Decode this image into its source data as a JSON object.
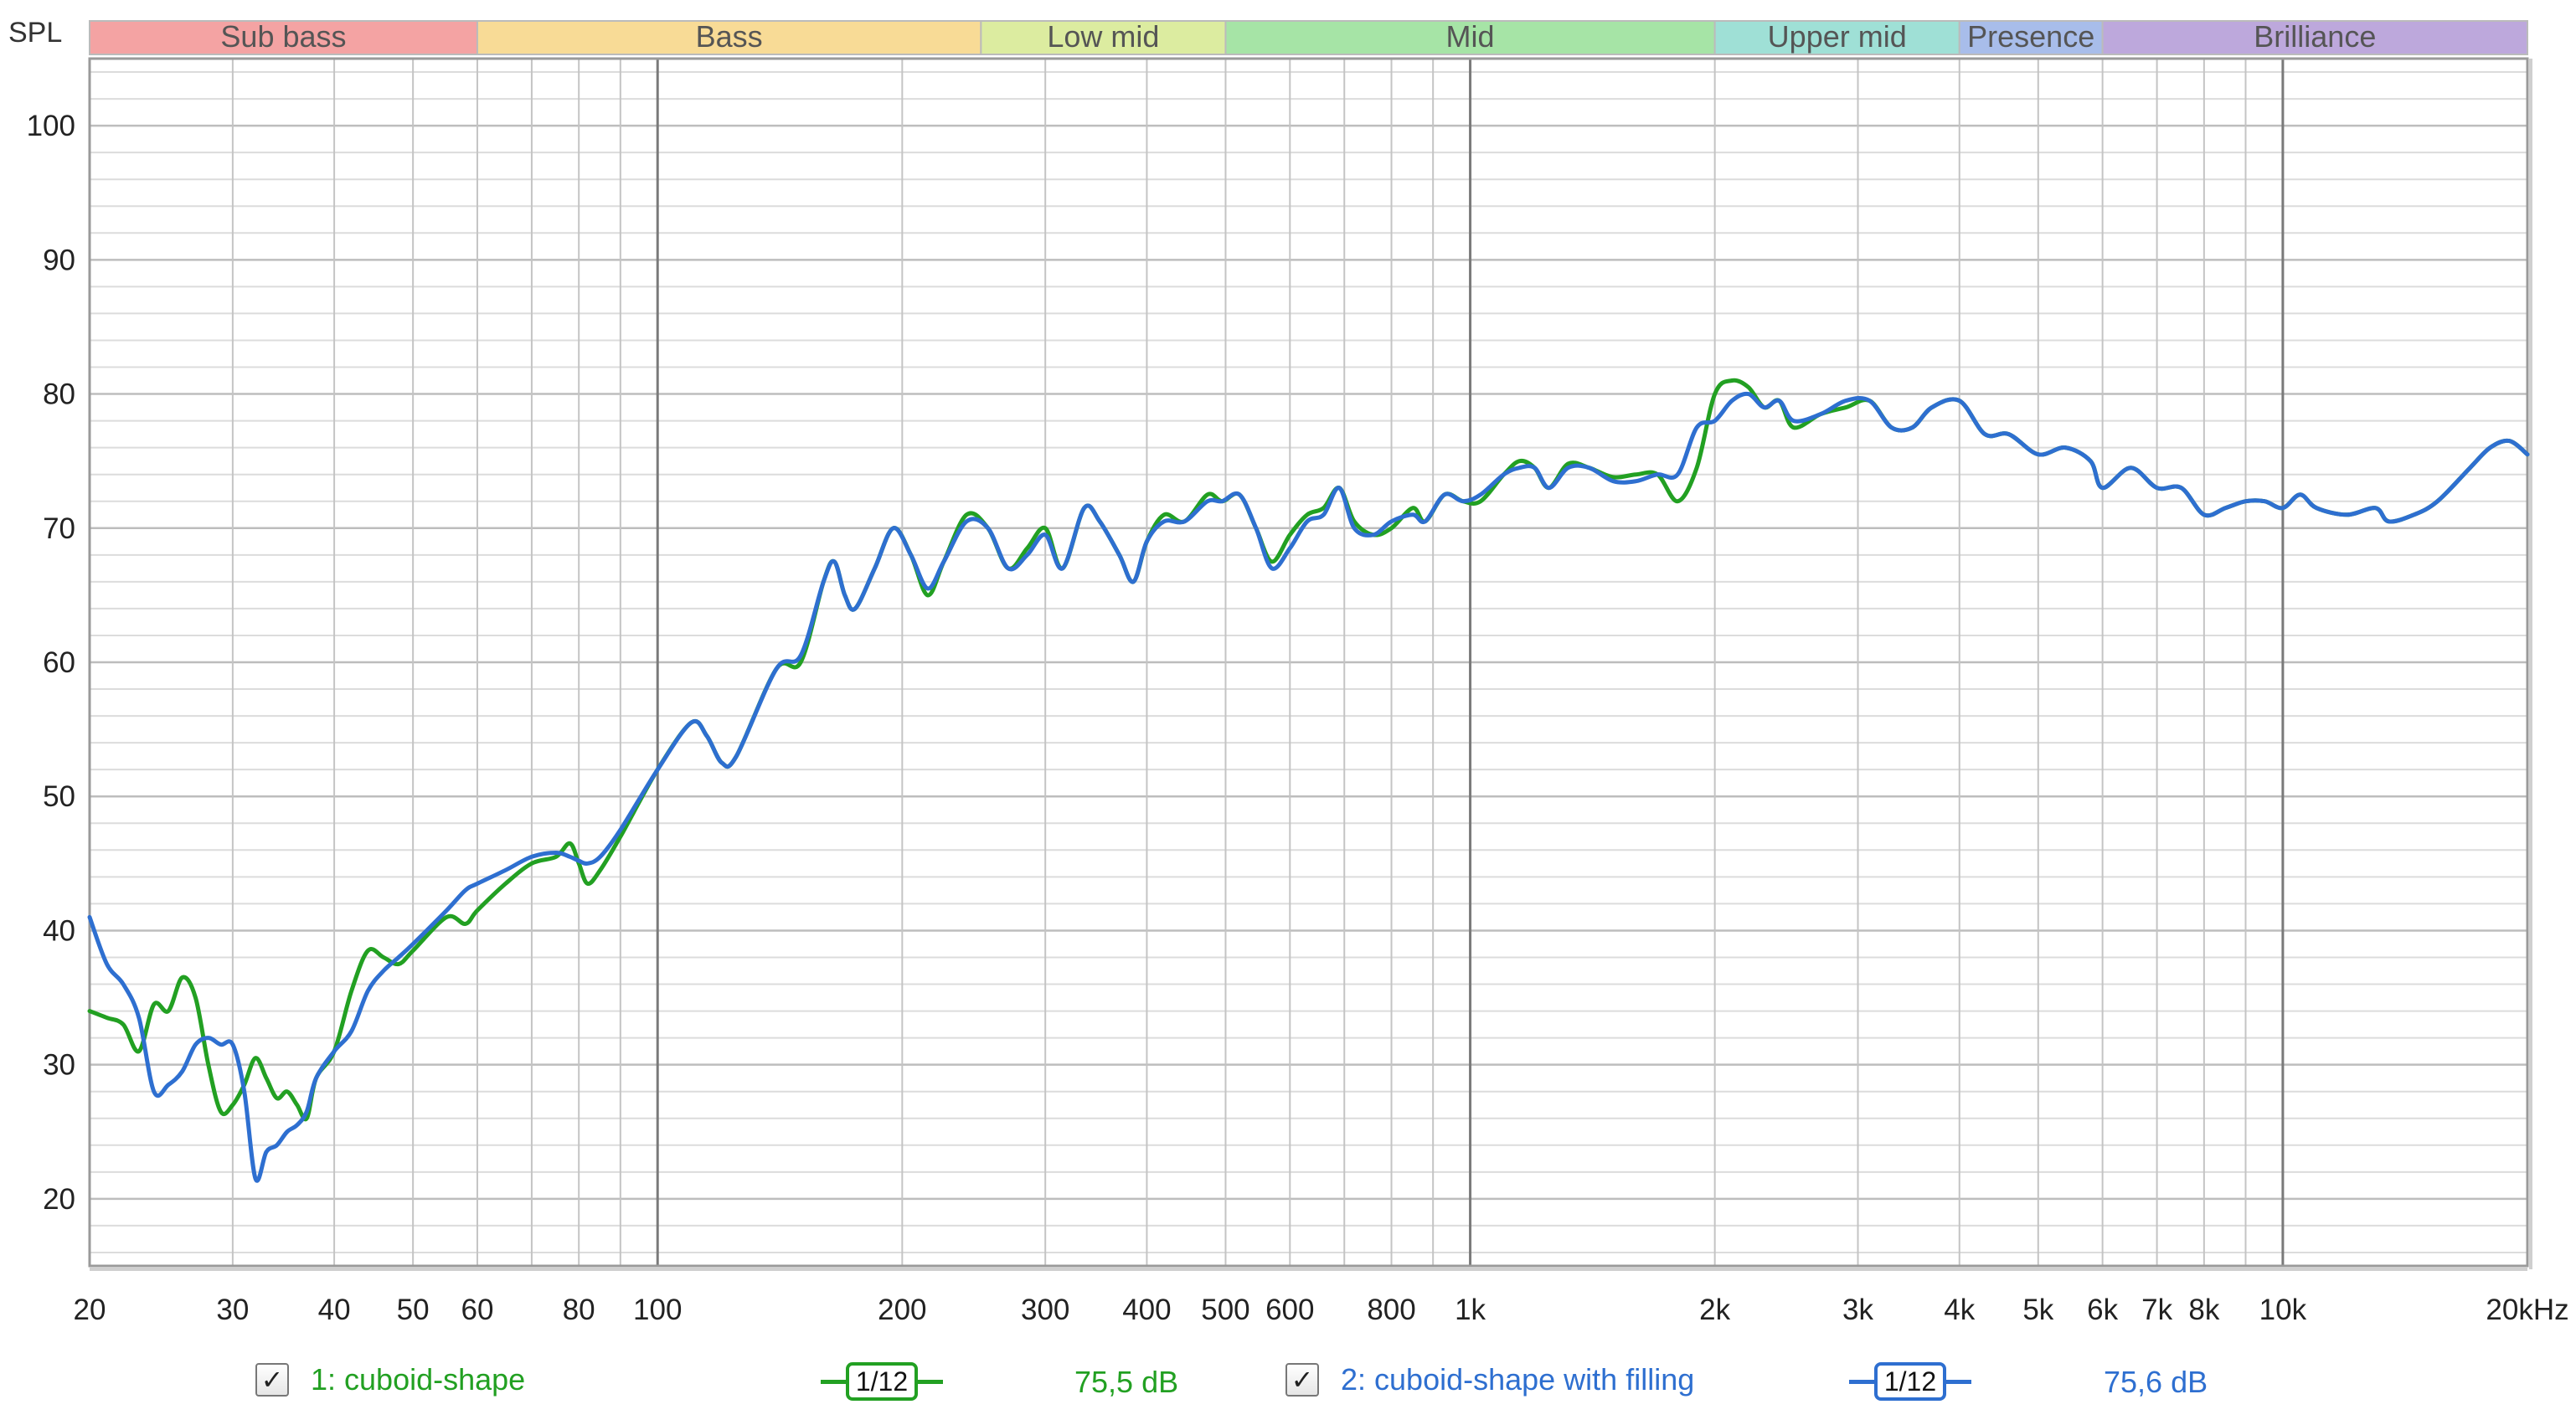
{
  "app": {
    "y_axis_title": "SPL",
    "bands": [
      {
        "label": "Sub bass",
        "from": 20,
        "to": 60,
        "color": "#f4a3a3"
      },
      {
        "label": "Bass",
        "from": 60,
        "to": 250,
        "color": "#f8db96"
      },
      {
        "label": "Low mid",
        "from": 250,
        "to": 500,
        "color": "#dcecA0"
      },
      {
        "label": "Mid",
        "from": 500,
        "to": 2000,
        "color": "#a6e4a6"
      },
      {
        "label": "Upper mid",
        "from": 2000,
        "to": 4000,
        "color": "#9fe0d6"
      },
      {
        "label": "Presence",
        "from": 4000,
        "to": 6000,
        "color": "#a8bdea"
      },
      {
        "label": "Brilliance",
        "from": 6000,
        "to": 20000,
        "color": "#bda8dc"
      }
    ],
    "legend": [
      {
        "checked": true,
        "checkmark": "✓",
        "label": "1: cuboid-shape",
        "smoothing": "1/12",
        "value": "75,5 dB",
        "color": "#22a022"
      },
      {
        "checked": true,
        "checkmark": "✓",
        "label": "2: cuboid-shape with filling",
        "smoothing": "1/12",
        "value": "75,6 dB",
        "color": "#2e6fd0"
      }
    ]
  },
  "chart_data": {
    "type": "line",
    "x_scale": "log",
    "xlim": [
      20,
      20000
    ],
    "ylim": [
      15,
      105
    ],
    "ylabel": "SPL",
    "grid": true,
    "y_ticks": [
      20,
      30,
      40,
      50,
      60,
      70,
      80,
      90,
      100
    ],
    "x_ticks": [
      {
        "value": 20,
        "label": "20"
      },
      {
        "value": 30,
        "label": "30"
      },
      {
        "value": 40,
        "label": "40"
      },
      {
        "value": 50,
        "label": "50"
      },
      {
        "value": 60,
        "label": "60"
      },
      {
        "value": 80,
        "label": "80"
      },
      {
        "value": 100,
        "label": "100"
      },
      {
        "value": 200,
        "label": "200"
      },
      {
        "value": 300,
        "label": "300"
      },
      {
        "value": 400,
        "label": "400"
      },
      {
        "value": 500,
        "label": "500"
      },
      {
        "value": 600,
        "label": "600"
      },
      {
        "value": 800,
        "label": "800"
      },
      {
        "value": 1000,
        "label": "1k"
      },
      {
        "value": 2000,
        "label": "2k"
      },
      {
        "value": 3000,
        "label": "3k"
      },
      {
        "value": 4000,
        "label": "4k"
      },
      {
        "value": 5000,
        "label": "5k"
      },
      {
        "value": 6000,
        "label": "6k"
      },
      {
        "value": 7000,
        "label": "7k"
      },
      {
        "value": 8000,
        "label": "8k"
      },
      {
        "value": 10000,
        "label": "10k"
      },
      {
        "value": 20000,
        "label": "20kHz"
      }
    ],
    "series": [
      {
        "name": "1: cuboid-shape",
        "color": "#22a022",
        "points": [
          [
            20,
            34
          ],
          [
            21,
            33.5
          ],
          [
            22,
            33
          ],
          [
            23,
            31
          ],
          [
            24,
            34.5
          ],
          [
            25,
            34
          ],
          [
            26,
            36.5
          ],
          [
            27,
            35
          ],
          [
            28,
            30
          ],
          [
            29,
            26.5
          ],
          [
            30,
            27
          ],
          [
            31,
            28.5
          ],
          [
            32,
            30.5
          ],
          [
            33,
            29
          ],
          [
            34,
            27.5
          ],
          [
            35,
            28
          ],
          [
            36,
            27
          ],
          [
            37,
            26
          ],
          [
            38,
            29
          ],
          [
            40,
            31
          ],
          [
            42,
            35.5
          ],
          [
            44,
            38.5
          ],
          [
            46,
            38
          ],
          [
            48,
            37.5
          ],
          [
            50,
            38.5
          ],
          [
            55,
            41
          ],
          [
            58,
            40.5
          ],
          [
            60,
            41.5
          ],
          [
            65,
            43.5
          ],
          [
            70,
            45
          ],
          [
            75,
            45.5
          ],
          [
            78,
            46.5
          ],
          [
            80,
            45
          ],
          [
            82,
            43.5
          ],
          [
            85,
            44.5
          ],
          [
            90,
            47
          ],
          [
            100,
            52
          ],
          [
            110,
            55.5
          ],
          [
            115,
            54.5
          ],
          [
            120,
            52.5
          ],
          [
            125,
            53
          ],
          [
            140,
            59.5
          ],
          [
            150,
            60
          ],
          [
            160,
            66
          ],
          [
            165,
            67.5
          ],
          [
            170,
            65
          ],
          [
            175,
            64
          ],
          [
            185,
            67
          ],
          [
            195,
            70
          ],
          [
            205,
            68
          ],
          [
            215,
            65
          ],
          [
            225,
            67.5
          ],
          [
            240,
            71
          ],
          [
            255,
            70
          ],
          [
            270,
            67
          ],
          [
            285,
            68.5
          ],
          [
            300,
            70
          ],
          [
            315,
            67
          ],
          [
            335,
            71.5
          ],
          [
            350,
            70.5
          ],
          [
            370,
            68
          ],
          [
            385,
            66
          ],
          [
            400,
            69
          ],
          [
            420,
            71
          ],
          [
            445,
            70.5
          ],
          [
            475,
            72.5
          ],
          [
            495,
            72
          ],
          [
            520,
            72.5
          ],
          [
            545,
            70
          ],
          [
            570,
            67.5
          ],
          [
            600,
            69.5
          ],
          [
            630,
            71
          ],
          [
            660,
            71.5
          ],
          [
            690,
            73
          ],
          [
            720,
            70.5
          ],
          [
            760,
            69.5
          ],
          [
            800,
            70
          ],
          [
            850,
            71.5
          ],
          [
            880,
            70.5
          ],
          [
            930,
            72.5
          ],
          [
            980,
            72
          ],
          [
            1030,
            72
          ],
          [
            1100,
            74
          ],
          [
            1150,
            75
          ],
          [
            1200,
            74.5
          ],
          [
            1250,
            73
          ],
          [
            1320,
            74.8
          ],
          [
            1400,
            74.5
          ],
          [
            1500,
            73.8
          ],
          [
            1600,
            74
          ],
          [
            1700,
            74
          ],
          [
            1800,
            72
          ],
          [
            1900,
            74.5
          ],
          [
            2000,
            80
          ],
          [
            2100,
            81
          ],
          [
            2200,
            80.5
          ],
          [
            2300,
            79
          ],
          [
            2400,
            79.5
          ],
          [
            2500,
            77.5
          ],
          [
            2700,
            78.5
          ],
          [
            2900,
            79
          ],
          [
            3100,
            79.5
          ],
          [
            3300,
            77.5
          ],
          [
            3500,
            77.5
          ],
          [
            3700,
            79
          ],
          [
            4000,
            79.5
          ],
          [
            4300,
            77
          ],
          [
            4600,
            77
          ],
          [
            5000,
            75.5
          ],
          [
            5400,
            76
          ],
          [
            5800,
            75
          ],
          [
            6000,
            73
          ],
          [
            6500,
            74.5
          ],
          [
            7000,
            73
          ],
          [
            7500,
            73
          ],
          [
            8000,
            71
          ],
          [
            8500,
            71.5
          ],
          [
            9000,
            72
          ],
          [
            9500,
            72
          ],
          [
            10000,
            71.5
          ],
          [
            10500,
            72.5
          ],
          [
            11000,
            71.5
          ],
          [
            12000,
            71
          ],
          [
            13000,
            71.5
          ],
          [
            13500,
            70.5
          ],
          [
            14500,
            71
          ],
          [
            15500,
            72
          ],
          [
            17000,
            74.5
          ],
          [
            18000,
            76
          ],
          [
            19000,
            76.5
          ],
          [
            20000,
            75.5
          ]
        ]
      },
      {
        "name": "2: cuboid-shape with filling",
        "color": "#2e6fd0",
        "points": [
          [
            20,
            41
          ],
          [
            21,
            37.5
          ],
          [
            22,
            36
          ],
          [
            23,
            33.5
          ],
          [
            24,
            28
          ],
          [
            25,
            28.5
          ],
          [
            26,
            29.5
          ],
          [
            27,
            31.5
          ],
          [
            28,
            32
          ],
          [
            29,
            31.5
          ],
          [
            30,
            31.5
          ],
          [
            31,
            28
          ],
          [
            32,
            21.5
          ],
          [
            33,
            23.5
          ],
          [
            34,
            24
          ],
          [
            35,
            25
          ],
          [
            36,
            25.5
          ],
          [
            37,
            26.5
          ],
          [
            38,
            29
          ],
          [
            40,
            31
          ],
          [
            42,
            32.5
          ],
          [
            44,
            35.5
          ],
          [
            46,
            37
          ],
          [
            48,
            38
          ],
          [
            50,
            39
          ],
          [
            55,
            41.5
          ],
          [
            58,
            43
          ],
          [
            60,
            43.5
          ],
          [
            65,
            44.5
          ],
          [
            70,
            45.5
          ],
          [
            75,
            45.8
          ],
          [
            78,
            45.5
          ],
          [
            80,
            45.2
          ],
          [
            82,
            45
          ],
          [
            85,
            45.5
          ],
          [
            90,
            47.5
          ],
          [
            100,
            52
          ],
          [
            110,
            55.5
          ],
          [
            115,
            54.5
          ],
          [
            120,
            52.5
          ],
          [
            125,
            53
          ],
          [
            140,
            59.5
          ],
          [
            150,
            60.5
          ],
          [
            160,
            66
          ],
          [
            165,
            67.5
          ],
          [
            170,
            65
          ],
          [
            175,
            64
          ],
          [
            185,
            67
          ],
          [
            195,
            70
          ],
          [
            205,
            68
          ],
          [
            215,
            65.5
          ],
          [
            225,
            67.5
          ],
          [
            240,
            70.5
          ],
          [
            255,
            70
          ],
          [
            270,
            67
          ],
          [
            285,
            68
          ],
          [
            300,
            69.5
          ],
          [
            315,
            67
          ],
          [
            335,
            71.5
          ],
          [
            350,
            70.5
          ],
          [
            370,
            68
          ],
          [
            385,
            66
          ],
          [
            400,
            69
          ],
          [
            420,
            70.5
          ],
          [
            445,
            70.5
          ],
          [
            475,
            72
          ],
          [
            495,
            72
          ],
          [
            520,
            72.5
          ],
          [
            545,
            70
          ],
          [
            570,
            67
          ],
          [
            600,
            68.5
          ],
          [
            630,
            70.5
          ],
          [
            660,
            71
          ],
          [
            690,
            73
          ],
          [
            720,
            70
          ],
          [
            760,
            69.5
          ],
          [
            800,
            70.5
          ],
          [
            850,
            71
          ],
          [
            880,
            70.5
          ],
          [
            930,
            72.5
          ],
          [
            980,
            72
          ],
          [
            1030,
            72.5
          ],
          [
            1100,
            74
          ],
          [
            1150,
            74.5
          ],
          [
            1200,
            74.5
          ],
          [
            1250,
            73
          ],
          [
            1320,
            74.5
          ],
          [
            1400,
            74.5
          ],
          [
            1500,
            73.5
          ],
          [
            1600,
            73.5
          ],
          [
            1700,
            74
          ],
          [
            1800,
            74
          ],
          [
            1900,
            77.5
          ],
          [
            2000,
            78
          ],
          [
            2100,
            79.5
          ],
          [
            2200,
            80
          ],
          [
            2300,
            79
          ],
          [
            2400,
            79.5
          ],
          [
            2500,
            78
          ],
          [
            2700,
            78.5
          ],
          [
            2900,
            79.5
          ],
          [
            3100,
            79.5
          ],
          [
            3300,
            77.5
          ],
          [
            3500,
            77.5
          ],
          [
            3700,
            79
          ],
          [
            4000,
            79.5
          ],
          [
            4300,
            77
          ],
          [
            4600,
            77
          ],
          [
            5000,
            75.5
          ],
          [
            5400,
            76
          ],
          [
            5800,
            75
          ],
          [
            6000,
            73
          ],
          [
            6500,
            74.5
          ],
          [
            7000,
            73
          ],
          [
            7500,
            73
          ],
          [
            8000,
            71
          ],
          [
            8500,
            71.5
          ],
          [
            9000,
            72
          ],
          [
            9500,
            72
          ],
          [
            10000,
            71.5
          ],
          [
            10500,
            72.5
          ],
          [
            11000,
            71.5
          ],
          [
            12000,
            71
          ],
          [
            13000,
            71.5
          ],
          [
            13500,
            70.5
          ],
          [
            14500,
            71
          ],
          [
            15500,
            72
          ],
          [
            17000,
            74.5
          ],
          [
            18000,
            76
          ],
          [
            19000,
            76.5
          ],
          [
            20000,
            75.5
          ]
        ]
      }
    ]
  }
}
